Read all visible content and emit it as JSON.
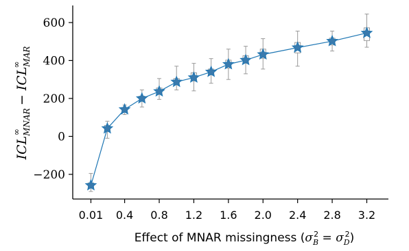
{
  "chart_data": {
    "type": "line",
    "title": "",
    "xlabel": {
      "text": "Effect of MNAR missingness (",
      "sigma": "σ",
      "sub_b": "B",
      "sub_d": "D",
      "exp": "2",
      "equals": "=",
      "close": ")"
    },
    "ylabel": {
      "icl": "ICL",
      "sup": "∞",
      "sub_mnar": "MNAR",
      "sub_mar": "MAR",
      "minus": " − "
    },
    "x_tick_labels": [
      "0.01",
      "0.4",
      "0.8",
      "1.2",
      "1.6",
      "2.0",
      "2.4",
      "2.8",
      "3.2"
    ],
    "x_ticks": [
      0.01,
      0.4,
      0.8,
      1.2,
      1.6,
      2.0,
      2.4,
      2.8,
      3.2
    ],
    "y_tick_labels": [
      "−200",
      "0",
      "200",
      "400",
      "600"
    ],
    "y_ticks": [
      -200,
      0,
      200,
      400,
      600
    ],
    "xlim": [
      -0.2,
      3.45
    ],
    "ylim": [
      -330,
      690
    ],
    "grid": false,
    "line_color": "#1f77b4",
    "marker_color": "#3a7aad",
    "box_color": "#999999",
    "series": [
      {
        "x": [
          0.01,
          0.2,
          0.4,
          0.6,
          0.8,
          1.0,
          1.2,
          1.4,
          1.6,
          1.8,
          2.0,
          2.4,
          2.8,
          3.2
        ],
        "values": [
          -258,
          42,
          142,
          200,
          237,
          287,
          310,
          340,
          380,
          402,
          432,
          468,
          502,
          545
        ],
        "whisker_low": [
          -290,
          -10,
          115,
          155,
          195,
          245,
          240,
          280,
          300,
          330,
          355,
          370,
          450,
          470
        ],
        "whisker_high": [
          -195,
          80,
          165,
          245,
          305,
          370,
          385,
          410,
          460,
          475,
          515,
          555,
          555,
          645
        ],
        "box_low": [
          -272,
          25,
          132,
          188,
          222,
          272,
          292,
          325,
          360,
          385,
          412,
          440,
          482,
          505
        ],
        "box_high": [
          -245,
          58,
          152,
          212,
          255,
          305,
          335,
          355,
          402,
          425,
          460,
          495,
          518,
          572
        ]
      }
    ]
  }
}
